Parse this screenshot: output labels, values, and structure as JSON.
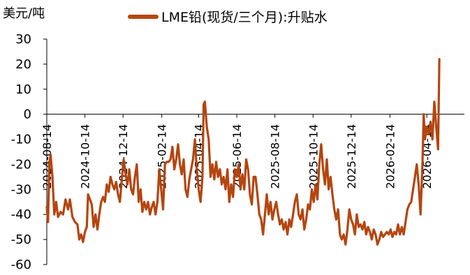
{
  "chart_data": {
    "type": "line",
    "unit_label": "美元/吨",
    "series_name": "LME铅(现货/三个月):升贴水",
    "color": "#B5450F",
    "ylim": [
      -60,
      30
    ],
    "yticks": [
      "30",
      "20",
      "10",
      "0",
      "-10",
      "-20",
      "-30",
      "-40",
      "-50",
      "-60"
    ],
    "xticks": [
      {
        "date": "2024-08-14",
        "label": "2024-08-14"
      },
      {
        "date": "2024-10-14",
        "label": "2024-10-14"
      },
      {
        "date": "2024-12-14",
        "label": "2024-12-14"
      },
      {
        "date": "2025-02-14",
        "label": "2025-02-14"
      },
      {
        "date": "2025-04-14",
        "label": "2025-04-14"
      },
      {
        "date": "2025-06-14",
        "label": "2025-06-14"
      },
      {
        "date": "2025-08-14",
        "label": "2025-08-14"
      },
      {
        "date": "2025-10-14",
        "label": "2025-10-14"
      },
      {
        "date": "2025-12-14",
        "label": "2025-12-14"
      },
      {
        "date": "2026-02-14",
        "label": "2026-02-14"
      },
      {
        "date": "2026-04-14",
        "label": "2026-04-14"
      }
    ],
    "xlim": [
      "2024-08-14",
      "2026-05-31"
    ],
    "points": [
      [
        "2024-08-14",
        -37
      ],
      [
        "2024-08-16",
        -43
      ],
      [
        "2024-08-18",
        -20
      ],
      [
        "2024-08-20",
        -16
      ],
      [
        "2024-08-23",
        -25
      ],
      [
        "2024-08-26",
        -40
      ],
      [
        "2024-08-29",
        -35
      ],
      [
        "2024-09-01",
        -41
      ],
      [
        "2024-09-05",
        -39
      ],
      [
        "2024-09-09",
        -40
      ],
      [
        "2024-09-13",
        -34
      ],
      [
        "2024-09-17",
        -38
      ],
      [
        "2024-09-20",
        -34
      ],
      [
        "2024-09-24",
        -41
      ],
      [
        "2024-09-28",
        -43
      ],
      [
        "2024-10-02",
        -44
      ],
      [
        "2024-10-05",
        -50
      ],
      [
        "2024-10-08",
        -48
      ],
      [
        "2024-10-11",
        -51
      ],
      [
        "2024-10-14",
        -47
      ],
      [
        "2024-10-17",
        -45
      ],
      [
        "2024-10-19",
        -32
      ],
      [
        "2024-10-22",
        -34
      ],
      [
        "2024-10-25",
        -36
      ],
      [
        "2024-10-28",
        -45
      ],
      [
        "2024-10-31",
        -40
      ],
      [
        "2024-11-03",
        -46
      ],
      [
        "2024-11-06",
        -40
      ],
      [
        "2024-11-09",
        -35
      ],
      [
        "2024-11-12",
        -33
      ],
      [
        "2024-11-15",
        -35
      ],
      [
        "2024-11-18",
        -28
      ],
      [
        "2024-11-21",
        -31
      ],
      [
        "2024-11-24",
        -25
      ],
      [
        "2024-11-27",
        -28
      ],
      [
        "2024-11-30",
        -30
      ],
      [
        "2024-12-03",
        -27
      ],
      [
        "2024-12-06",
        -32
      ],
      [
        "2024-12-09",
        -35
      ],
      [
        "2024-12-12",
        -26
      ],
      [
        "2024-12-15",
        -18
      ],
      [
        "2024-12-18",
        -24
      ],
      [
        "2024-12-21",
        -28
      ],
      [
        "2024-12-24",
        -22
      ],
      [
        "2024-12-27",
        -30
      ],
      [
        "2024-12-30",
        -32
      ],
      [
        "2025-01-02",
        -25
      ],
      [
        "2025-01-05",
        -20
      ],
      [
        "2025-01-08",
        -35
      ],
      [
        "2025-01-11",
        -30
      ],
      [
        "2025-01-14",
        -39
      ],
      [
        "2025-01-17",
        -35
      ],
      [
        "2025-01-20",
        -38
      ],
      [
        "2025-01-23",
        -35
      ],
      [
        "2025-01-26",
        -40
      ],
      [
        "2025-01-29",
        -37
      ],
      [
        "2025-02-01",
        -35
      ],
      [
        "2025-02-04",
        -40
      ],
      [
        "2025-02-07",
        -35
      ],
      [
        "2025-02-10",
        -22
      ],
      [
        "2025-02-13",
        -30
      ],
      [
        "2025-02-16",
        -38
      ],
      [
        "2025-02-19",
        -20
      ],
      [
        "2025-02-22",
        -19
      ],
      [
        "2025-02-25",
        -19
      ],
      [
        "2025-02-28",
        -18
      ],
      [
        "2025-03-03",
        -13
      ],
      [
        "2025-03-06",
        -22
      ],
      [
        "2025-03-09",
        -18
      ],
      [
        "2025-03-12",
        -12
      ],
      [
        "2025-03-15",
        -20
      ],
      [
        "2025-03-18",
        -24
      ],
      [
        "2025-03-21",
        -18
      ],
      [
        "2025-03-24",
        -30
      ],
      [
        "2025-03-27",
        -33
      ],
      [
        "2025-03-30",
        -26
      ],
      [
        "2025-04-02",
        -22
      ],
      [
        "2025-04-05",
        -18
      ],
      [
        "2025-04-08",
        -10
      ],
      [
        "2025-04-11",
        -22
      ],
      [
        "2025-04-14",
        -30
      ],
      [
        "2025-04-17",
        -35
      ],
      [
        "2025-04-20",
        -25
      ],
      [
        "2025-04-22",
        4
      ],
      [
        "2025-04-24",
        5
      ],
      [
        "2025-04-27",
        -5
      ],
      [
        "2025-04-30",
        -10
      ],
      [
        "2025-05-03",
        -25
      ],
      [
        "2025-05-06",
        -20
      ],
      [
        "2025-05-09",
        -26
      ],
      [
        "2025-05-12",
        -19
      ],
      [
        "2025-05-15",
        -25
      ],
      [
        "2025-05-18",
        -22
      ],
      [
        "2025-05-21",
        -28
      ],
      [
        "2025-05-24",
        -25
      ],
      [
        "2025-05-27",
        -30
      ],
      [
        "2025-05-30",
        -22
      ],
      [
        "2025-06-02",
        -35
      ],
      [
        "2025-06-05",
        -28
      ],
      [
        "2025-06-08",
        -33
      ],
      [
        "2025-06-11",
        -22
      ],
      [
        "2025-06-14",
        -25
      ],
      [
        "2025-06-17",
        -20
      ],
      [
        "2025-06-20",
        -30
      ],
      [
        "2025-06-23",
        -24
      ],
      [
        "2025-06-26",
        -30
      ],
      [
        "2025-06-29",
        -18
      ],
      [
        "2025-07-02",
        -22
      ],
      [
        "2025-07-05",
        -32
      ],
      [
        "2025-07-08",
        -36
      ],
      [
        "2025-07-11",
        -25
      ],
      [
        "2025-07-14",
        -25
      ],
      [
        "2025-07-17",
        -32
      ],
      [
        "2025-07-20",
        -40
      ],
      [
        "2025-07-23",
        -42
      ],
      [
        "2025-07-26",
        -48
      ],
      [
        "2025-07-29",
        -40
      ],
      [
        "2025-08-01",
        -32
      ],
      [
        "2025-08-04",
        -40
      ],
      [
        "2025-08-07",
        -35
      ],
      [
        "2025-08-10",
        -42
      ],
      [
        "2025-08-13",
        -38
      ],
      [
        "2025-08-16",
        -35
      ],
      [
        "2025-08-19",
        -40
      ],
      [
        "2025-08-22",
        -44
      ],
      [
        "2025-08-25",
        -42
      ],
      [
        "2025-08-28",
        -46
      ],
      [
        "2025-08-31",
        -43
      ],
      [
        "2025-09-03",
        -48
      ],
      [
        "2025-09-06",
        -42
      ],
      [
        "2025-09-09",
        -45
      ],
      [
        "2025-09-12",
        -40
      ],
      [
        "2025-09-15",
        -35
      ],
      [
        "2025-09-18",
        -32
      ],
      [
        "2025-09-21",
        -40
      ],
      [
        "2025-09-24",
        -42
      ],
      [
        "2025-09-27",
        -38
      ],
      [
        "2025-09-30",
        -46
      ],
      [
        "2025-10-03",
        -42
      ],
      [
        "2025-10-06",
        -36
      ],
      [
        "2025-10-09",
        -38
      ],
      [
        "2025-10-12",
        -30
      ],
      [
        "2025-10-15",
        -35
      ],
      [
        "2025-10-18",
        -28
      ],
      [
        "2025-10-21",
        -34
      ],
      [
        "2025-10-24",
        -20
      ],
      [
        "2025-10-27",
        -12
      ],
      [
        "2025-10-30",
        -22
      ],
      [
        "2025-11-02",
        -28
      ],
      [
        "2025-11-05",
        -18
      ],
      [
        "2025-11-08",
        -30
      ],
      [
        "2025-11-11",
        -25
      ],
      [
        "2025-11-14",
        -32
      ],
      [
        "2025-11-17",
        -38
      ],
      [
        "2025-11-20",
        -42
      ],
      [
        "2025-11-23",
        -38
      ],
      [
        "2025-11-26",
        -48
      ],
      [
        "2025-11-29",
        -50
      ],
      [
        "2025-12-02",
        -48
      ],
      [
        "2025-12-05",
        -52
      ],
      [
        "2025-12-08",
        -46
      ],
      [
        "2025-12-11",
        -38
      ],
      [
        "2025-12-14",
        -42
      ],
      [
        "2025-12-17",
        -44
      ],
      [
        "2025-12-20",
        -48
      ],
      [
        "2025-12-23",
        -40
      ],
      [
        "2025-12-26",
        -45
      ],
      [
        "2025-12-29",
        -44
      ],
      [
        "2026-01-01",
        -46
      ],
      [
        "2026-01-04",
        -43
      ],
      [
        "2026-01-07",
        -48
      ],
      [
        "2026-01-10",
        -45
      ],
      [
        "2026-01-13",
        -47
      ],
      [
        "2026-01-16",
        -50
      ],
      [
        "2026-01-19",
        -46
      ],
      [
        "2026-01-22",
        -48
      ],
      [
        "2026-01-25",
        -52
      ],
      [
        "2026-01-28",
        -50
      ],
      [
        "2026-01-31",
        -47
      ],
      [
        "2026-02-03",
        -49
      ],
      [
        "2026-02-06",
        -48
      ],
      [
        "2026-02-09",
        -47
      ],
      [
        "2026-02-12",
        -48
      ],
      [
        "2026-02-15",
        -46
      ],
      [
        "2026-02-18",
        -49
      ],
      [
        "2026-02-21",
        -47
      ],
      [
        "2026-02-24",
        -48
      ],
      [
        "2026-02-27",
        -44
      ],
      [
        "2026-03-02",
        -48
      ],
      [
        "2026-03-05",
        -45
      ],
      [
        "2026-03-08",
        -48
      ],
      [
        "2026-03-11",
        -43
      ],
      [
        "2026-03-14",
        -38
      ],
      [
        "2026-03-17",
        -36
      ],
      [
        "2026-03-20",
        -35
      ],
      [
        "2026-03-23",
        -30
      ],
      [
        "2026-03-26",
        -25
      ],
      [
        "2026-03-29",
        -20
      ],
      [
        "2026-04-01",
        -28
      ],
      [
        "2026-04-04",
        -40
      ],
      [
        "2026-04-07",
        -20
      ],
      [
        "2026-04-09",
        0
      ],
      [
        "2026-04-11",
        -10
      ],
      [
        "2026-04-14",
        -5
      ],
      [
        "2026-04-17",
        -8
      ],
      [
        "2026-04-20",
        -3
      ],
      [
        "2026-04-23",
        -10
      ],
      [
        "2026-04-26",
        5
      ],
      [
        "2026-04-29",
        -5
      ],
      [
        "2026-05-02",
        -14
      ],
      [
        "2026-05-04",
        22
      ]
    ]
  }
}
